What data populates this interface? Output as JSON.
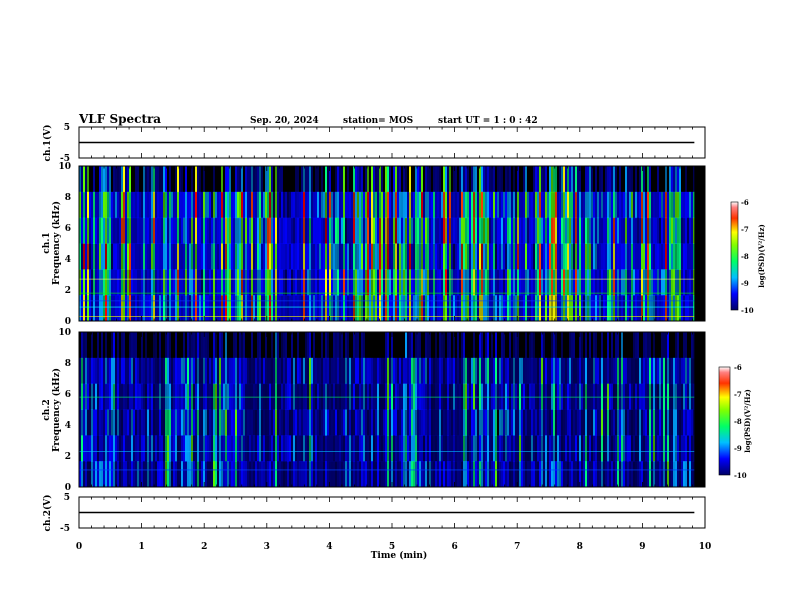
{
  "header": {
    "title": "VLF Spectra",
    "date": "Sep. 20, 2024",
    "station": "station= MOS",
    "start": "start  UT =   1 : 0   : 42"
  },
  "chart_data": [
    {
      "type": "line",
      "name": "ch1_waveform",
      "ylabel": "ch.1(V)",
      "ylim": [
        -5,
        5
      ],
      "yticks": [
        "5",
        "-5"
      ],
      "x": [
        0,
        10
      ],
      "y": [
        0,
        0
      ]
    },
    {
      "type": "heatmap",
      "name": "ch1_spectrogram",
      "ylabel_top": "ch.1",
      "ylabel": "Frequency (kHz)",
      "ylim": [
        0,
        10
      ],
      "yticks": [
        "0",
        "2",
        "4",
        "6",
        "8",
        "10"
      ],
      "xlim": [
        0,
        10
      ],
      "colorbar": {
        "label": "log(PSD)(V²/Hz)",
        "range": [
          -10,
          -6
        ],
        "ticks": [
          "-6",
          "-7",
          "-8",
          "-9",
          "-10"
        ]
      }
    },
    {
      "type": "heatmap",
      "name": "ch2_spectrogram",
      "ylabel_top": "ch.2",
      "ylabel": "Frequency (kHz)",
      "ylim": [
        0,
        10
      ],
      "yticks": [
        "0",
        "2",
        "4",
        "6",
        "8",
        "10"
      ],
      "xlim": [
        0,
        10
      ],
      "colorbar": {
        "label": "log(PSD)(V²/Hz)",
        "range": [
          -10,
          -6
        ],
        "ticks": [
          "-6",
          "-7",
          "-8",
          "-9",
          "-10"
        ]
      }
    },
    {
      "type": "line",
      "name": "ch2_waveform",
      "ylabel": "ch.2(V)",
      "ylim": [
        -5,
        5
      ],
      "yticks": [
        "5",
        "-5"
      ],
      "x": [
        0,
        10
      ],
      "y": [
        0,
        0
      ]
    }
  ],
  "xaxis": {
    "label": "Time  (min)",
    "range": [
      0,
      10
    ],
    "ticks": [
      "0",
      "1",
      "2",
      "3",
      "4",
      "5",
      "6",
      "7",
      "8",
      "9",
      "10"
    ],
    "data_end": 9.83
  },
  "colors": {
    "background": "#000000",
    "low": "#00008b",
    "mid": "#00ff00",
    "high": "#ff0000"
  }
}
